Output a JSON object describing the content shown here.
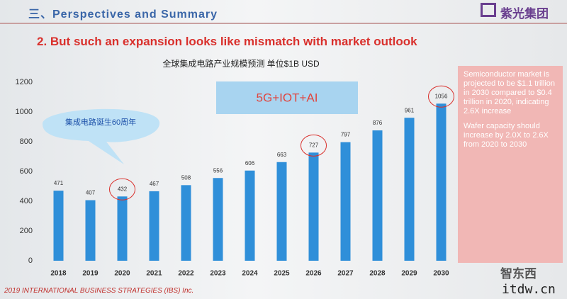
{
  "header": {
    "title": "三、Perspectives and Summary",
    "logo": "紫光集团"
  },
  "subtitle": "2. But such an expansion looks like mismatch with market outlook",
  "chart_data": {
    "type": "bar",
    "title": "全球集成电路产业规模预测 单位$1B USD",
    "categories": [
      "2018",
      "2019",
      "2020",
      "2021",
      "2022",
      "2023",
      "2024",
      "2025",
      "2026",
      "2027",
      "2028",
      "2029",
      "2030"
    ],
    "values": [
      471,
      407,
      432,
      467,
      508,
      556,
      606,
      663,
      727,
      797,
      876,
      961,
      1056
    ],
    "color": "#2f8fd9",
    "ylim": [
      0,
      1200
    ],
    "yticks": [
      0,
      200,
      400,
      600,
      800,
      1000,
      1200
    ],
    "grid": false,
    "annotations": [
      "集成电路诞生60周年",
      "5G+IOT+AI"
    ]
  },
  "side_note": [
    "Semiconductor market is projected to be $1.1 trillion in 2030 compared to $0.4 trillion in 2020, indicating 2.6X increase",
    "Wafer capacity should increase by 2.0X to 2.6X from 2020 to 2030"
  ],
  "footer": "2019 INTERNATIONAL BUSINESS STRATEGIES (IBS) Inc.",
  "watermark": [
    "智东西",
    "itdw.cn"
  ]
}
